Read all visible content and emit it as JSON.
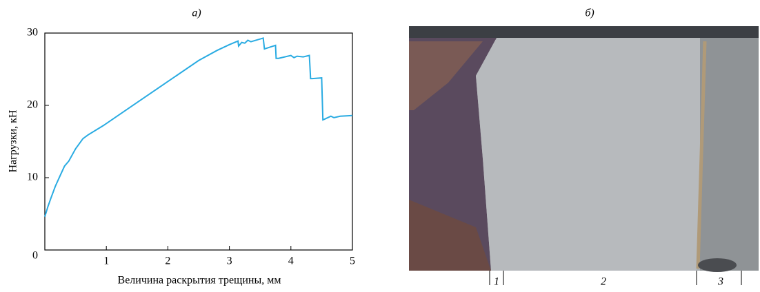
{
  "chart_data": {
    "type": "line",
    "title": "а)",
    "xlabel": "Величина раскрытия трещины, мм",
    "ylabel": "Нагрузки, кН",
    "xlim": [
      0,
      5
    ],
    "ylim": [
      0,
      30
    ],
    "xticks": [
      1,
      2,
      3,
      4,
      5
    ],
    "yticks": [
      0,
      10,
      20,
      30
    ],
    "series": [
      {
        "color": "#29abe2",
        "x": [
          0,
          0.05,
          0.1,
          0.17,
          0.25,
          0.32,
          0.39,
          0.5,
          0.62,
          0.7,
          0.95,
          1.5,
          2.0,
          2.5,
          2.8,
          3.0,
          3.14,
          3.15,
          3.2,
          3.25,
          3.3,
          3.35,
          3.55,
          3.57,
          3.75,
          3.76,
          3.8,
          3.9,
          4.0,
          4.05,
          4.1,
          4.2,
          4.3,
          4.32,
          4.35,
          4.5,
          4.52,
          4.55,
          4.65,
          4.7,
          4.8,
          5.0
        ],
        "values": [
          4.6,
          6.0,
          7.2,
          8.8,
          10.3,
          11.6,
          12.3,
          14.0,
          15.4,
          15.9,
          17.2,
          20.4,
          23.3,
          26.2,
          27.6,
          28.4,
          28.9,
          28.2,
          28.7,
          28.6,
          29.0,
          28.8,
          29.3,
          27.8,
          28.3,
          26.5,
          26.5,
          26.7,
          26.9,
          26.6,
          26.8,
          26.7,
          26.9,
          23.7,
          23.7,
          23.8,
          18.0,
          18.1,
          18.5,
          18.3,
          18.5,
          18.6
        ]
      }
    ]
  },
  "photo": {
    "label": "б)",
    "zones": [
      "1",
      "2",
      "3"
    ]
  }
}
